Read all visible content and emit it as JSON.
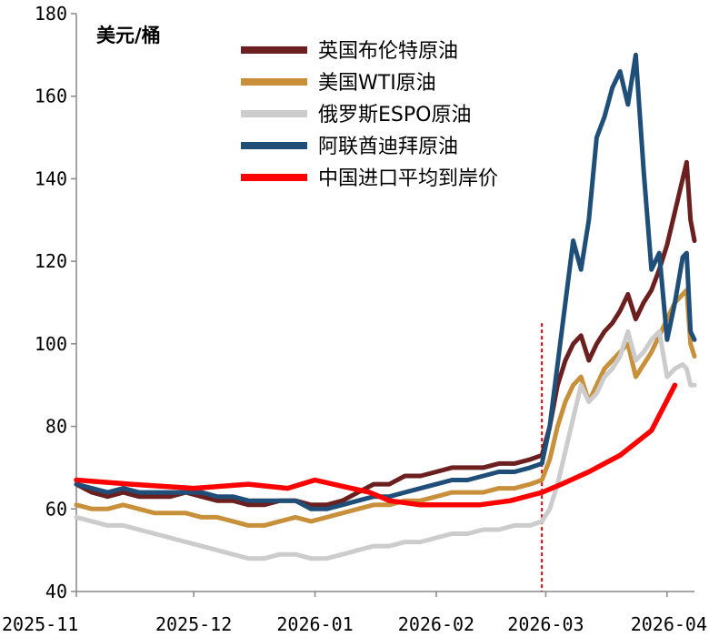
{
  "chart_data": {
    "type": "line",
    "unit_label": "美元/桶",
    "ylim": [
      40,
      180
    ],
    "y_ticks": [
      40,
      60,
      80,
      100,
      120,
      140,
      160,
      180
    ],
    "x_ticks": [
      "2025-11",
      "2025-12",
      "2026-01",
      "2026-02",
      "2026-03",
      "2026-04"
    ],
    "x_range": [
      "2025-11-01",
      "2026-04-08"
    ],
    "grid": false,
    "legend_position": "top-center",
    "marker_line": {
      "date": "2026-02-28",
      "style": "dashed",
      "color": "#e00000"
    },
    "series": [
      {
        "name": "英国布伦特原油",
        "color": "#6b1f1f",
        "points": [
          [
            "2025-11-01",
            66
          ],
          [
            "2025-11-05",
            64
          ],
          [
            "2025-11-09",
            63
          ],
          [
            "2025-11-13",
            64
          ],
          [
            "2025-11-17",
            63
          ],
          [
            "2025-11-21",
            63
          ],
          [
            "2025-11-25",
            63
          ],
          [
            "2025-11-29",
            64
          ],
          [
            "2025-12-03",
            63
          ],
          [
            "2025-12-07",
            62
          ],
          [
            "2025-12-11",
            62
          ],
          [
            "2025-12-15",
            61
          ],
          [
            "2025-12-19",
            61
          ],
          [
            "2025-12-23",
            62
          ],
          [
            "2025-12-27",
            62
          ],
          [
            "2025-12-31",
            61
          ],
          [
            "2026-01-04",
            61
          ],
          [
            "2026-01-08",
            62
          ],
          [
            "2026-01-12",
            64
          ],
          [
            "2026-01-16",
            66
          ],
          [
            "2026-01-20",
            66
          ],
          [
            "2026-01-24",
            68
          ],
          [
            "2026-01-28",
            68
          ],
          [
            "2026-02-01",
            69
          ],
          [
            "2026-02-05",
            70
          ],
          [
            "2026-02-09",
            70
          ],
          [
            "2026-02-13",
            70
          ],
          [
            "2026-02-17",
            71
          ],
          [
            "2026-02-21",
            71
          ],
          [
            "2026-02-25",
            72
          ],
          [
            "2026-02-28",
            73
          ],
          [
            "2026-03-02",
            80
          ],
          [
            "2026-03-04",
            90
          ],
          [
            "2026-03-06",
            96
          ],
          [
            "2026-03-08",
            100
          ],
          [
            "2026-03-10",
            102
          ],
          [
            "2026-03-12",
            96
          ],
          [
            "2026-03-14",
            100
          ],
          [
            "2026-03-16",
            103
          ],
          [
            "2026-03-18",
            105
          ],
          [
            "2026-03-20",
            108
          ],
          [
            "2026-03-22",
            112
          ],
          [
            "2026-03-24",
            106
          ],
          [
            "2026-03-26",
            110
          ],
          [
            "2026-03-28",
            113
          ],
          [
            "2026-03-30",
            118
          ],
          [
            "2026-04-01",
            124
          ],
          [
            "2026-04-03",
            132
          ],
          [
            "2026-04-05",
            140
          ],
          [
            "2026-04-06",
            144
          ],
          [
            "2026-04-07",
            130
          ],
          [
            "2026-04-08",
            125
          ]
        ]
      },
      {
        "name": "美国WTI原油",
        "color": "#c8903a",
        "points": [
          [
            "2025-11-01",
            61
          ],
          [
            "2025-11-05",
            60
          ],
          [
            "2025-11-09",
            60
          ],
          [
            "2025-11-13",
            61
          ],
          [
            "2025-11-17",
            60
          ],
          [
            "2025-11-21",
            59
          ],
          [
            "2025-11-25",
            59
          ],
          [
            "2025-11-29",
            59
          ],
          [
            "2025-12-03",
            58
          ],
          [
            "2025-12-07",
            58
          ],
          [
            "2025-12-11",
            57
          ],
          [
            "2025-12-15",
            56
          ],
          [
            "2025-12-19",
            56
          ],
          [
            "2025-12-23",
            57
          ],
          [
            "2025-12-27",
            58
          ],
          [
            "2025-12-31",
            57
          ],
          [
            "2026-01-04",
            58
          ],
          [
            "2026-01-08",
            59
          ],
          [
            "2026-01-12",
            60
          ],
          [
            "2026-01-16",
            61
          ],
          [
            "2026-01-20",
            61
          ],
          [
            "2026-01-24",
            62
          ],
          [
            "2026-01-28",
            62
          ],
          [
            "2026-02-01",
            63
          ],
          [
            "2026-02-05",
            64
          ],
          [
            "2026-02-09",
            64
          ],
          [
            "2026-02-13",
            64
          ],
          [
            "2026-02-17",
            65
          ],
          [
            "2026-02-21",
            65
          ],
          [
            "2026-02-25",
            66
          ],
          [
            "2026-02-28",
            67
          ],
          [
            "2026-03-02",
            72
          ],
          [
            "2026-03-04",
            80
          ],
          [
            "2026-03-06",
            86
          ],
          [
            "2026-03-08",
            90
          ],
          [
            "2026-03-10",
            92
          ],
          [
            "2026-03-12",
            86
          ],
          [
            "2026-03-14",
            90
          ],
          [
            "2026-03-16",
            94
          ],
          [
            "2026-03-18",
            96
          ],
          [
            "2026-03-20",
            98
          ],
          [
            "2026-03-22",
            100
          ],
          [
            "2026-03-24",
            92
          ],
          [
            "2026-03-26",
            95
          ],
          [
            "2026-03-28",
            98
          ],
          [
            "2026-03-30",
            102
          ],
          [
            "2026-04-01",
            106
          ],
          [
            "2026-04-03",
            110
          ],
          [
            "2026-04-05",
            112
          ],
          [
            "2026-04-06",
            113
          ],
          [
            "2026-04-07",
            100
          ],
          [
            "2026-04-08",
            97
          ]
        ]
      },
      {
        "name": "俄罗斯ESPO原油",
        "color": "#cccccc",
        "points": [
          [
            "2025-11-01",
            58
          ],
          [
            "2025-11-05",
            57
          ],
          [
            "2025-11-09",
            56
          ],
          [
            "2025-11-13",
            56
          ],
          [
            "2025-11-17",
            55
          ],
          [
            "2025-11-21",
            54
          ],
          [
            "2025-11-25",
            53
          ],
          [
            "2025-11-29",
            52
          ],
          [
            "2025-12-03",
            51
          ],
          [
            "2025-12-07",
            50
          ],
          [
            "2025-12-11",
            49
          ],
          [
            "2025-12-15",
            48
          ],
          [
            "2025-12-19",
            48
          ],
          [
            "2025-12-23",
            49
          ],
          [
            "2025-12-27",
            49
          ],
          [
            "2025-12-31",
            48
          ],
          [
            "2026-01-04",
            48
          ],
          [
            "2026-01-08",
            49
          ],
          [
            "2026-01-12",
            50
          ],
          [
            "2026-01-16",
            51
          ],
          [
            "2026-01-20",
            51
          ],
          [
            "2026-01-24",
            52
          ],
          [
            "2026-01-28",
            52
          ],
          [
            "2026-02-01",
            53
          ],
          [
            "2026-02-05",
            54
          ],
          [
            "2026-02-09",
            54
          ],
          [
            "2026-02-13",
            55
          ],
          [
            "2026-02-17",
            55
          ],
          [
            "2026-02-21",
            56
          ],
          [
            "2026-02-25",
            56
          ],
          [
            "2026-02-28",
            57
          ],
          [
            "2026-03-02",
            60
          ],
          [
            "2026-03-04",
            66
          ],
          [
            "2026-03-06",
            74
          ],
          [
            "2026-03-08",
            82
          ],
          [
            "2026-03-10",
            90
          ],
          [
            "2026-03-12",
            86
          ],
          [
            "2026-03-14",
            88
          ],
          [
            "2026-03-16",
            92
          ],
          [
            "2026-03-18",
            94
          ],
          [
            "2026-03-20",
            97
          ],
          [
            "2026-03-22",
            103
          ],
          [
            "2026-03-24",
            96
          ],
          [
            "2026-03-26",
            98
          ],
          [
            "2026-03-28",
            101
          ],
          [
            "2026-03-30",
            103
          ],
          [
            "2026-04-01",
            92
          ],
          [
            "2026-04-03",
            94
          ],
          [
            "2026-04-05",
            95
          ],
          [
            "2026-04-06",
            94
          ],
          [
            "2026-04-07",
            90
          ],
          [
            "2026-04-08",
            90
          ]
        ]
      },
      {
        "name": "阿联酋迪拜原油",
        "color": "#1f4e79",
        "points": [
          [
            "2025-11-01",
            66
          ],
          [
            "2025-11-05",
            65
          ],
          [
            "2025-11-09",
            64
          ],
          [
            "2025-11-13",
            65
          ],
          [
            "2025-11-17",
            64
          ],
          [
            "2025-11-21",
            64
          ],
          [
            "2025-11-25",
            64
          ],
          [
            "2025-11-29",
            64
          ],
          [
            "2025-12-03",
            64
          ],
          [
            "2025-12-07",
            63
          ],
          [
            "2025-12-11",
            63
          ],
          [
            "2025-12-15",
            62
          ],
          [
            "2025-12-19",
            62
          ],
          [
            "2025-12-23",
            62
          ],
          [
            "2025-12-27",
            62
          ],
          [
            "2025-12-31",
            60
          ],
          [
            "2026-01-04",
            60
          ],
          [
            "2026-01-08",
            61
          ],
          [
            "2026-01-12",
            62
          ],
          [
            "2026-01-16",
            63
          ],
          [
            "2026-01-20",
            63
          ],
          [
            "2026-01-24",
            64
          ],
          [
            "2026-01-28",
            65
          ],
          [
            "2026-02-01",
            66
          ],
          [
            "2026-02-05",
            67
          ],
          [
            "2026-02-09",
            67
          ],
          [
            "2026-02-13",
            68
          ],
          [
            "2026-02-17",
            69
          ],
          [
            "2026-02-21",
            69
          ],
          [
            "2026-02-25",
            70
          ],
          [
            "2026-02-28",
            71
          ],
          [
            "2026-03-02",
            80
          ],
          [
            "2026-03-04",
            95
          ],
          [
            "2026-03-06",
            110
          ],
          [
            "2026-03-08",
            125
          ],
          [
            "2026-03-10",
            118
          ],
          [
            "2026-03-12",
            130
          ],
          [
            "2026-03-14",
            150
          ],
          [
            "2026-03-16",
            155
          ],
          [
            "2026-03-18",
            162
          ],
          [
            "2026-03-20",
            166
          ],
          [
            "2026-03-22",
            158
          ],
          [
            "2026-03-24",
            170
          ],
          [
            "2026-03-26",
            142
          ],
          [
            "2026-03-28",
            118
          ],
          [
            "2026-03-30",
            122
          ],
          [
            "2026-04-01",
            101
          ],
          [
            "2026-04-03",
            110
          ],
          [
            "2026-04-05",
            121
          ],
          [
            "2026-04-06",
            122
          ],
          [
            "2026-04-07",
            103
          ],
          [
            "2026-04-08",
            101
          ]
        ]
      },
      {
        "name": "中国进口平均到岸价",
        "color": "#ff0000",
        "points": [
          [
            "2025-11-01",
            67
          ],
          [
            "2025-11-15",
            66
          ],
          [
            "2025-12-01",
            65
          ],
          [
            "2025-12-15",
            66
          ],
          [
            "2025-12-25",
            65
          ],
          [
            "2026-01-01",
            67
          ],
          [
            "2026-01-15",
            64
          ],
          [
            "2026-01-20",
            62
          ],
          [
            "2026-01-28",
            61
          ],
          [
            "2026-02-05",
            61
          ],
          [
            "2026-02-12",
            61
          ],
          [
            "2026-02-20",
            62
          ],
          [
            "2026-02-28",
            64
          ],
          [
            "2026-03-05",
            66
          ],
          [
            "2026-03-12",
            69
          ],
          [
            "2026-03-20",
            73
          ],
          [
            "2026-03-28",
            79
          ],
          [
            "2026-04-03",
            90
          ]
        ]
      }
    ]
  }
}
